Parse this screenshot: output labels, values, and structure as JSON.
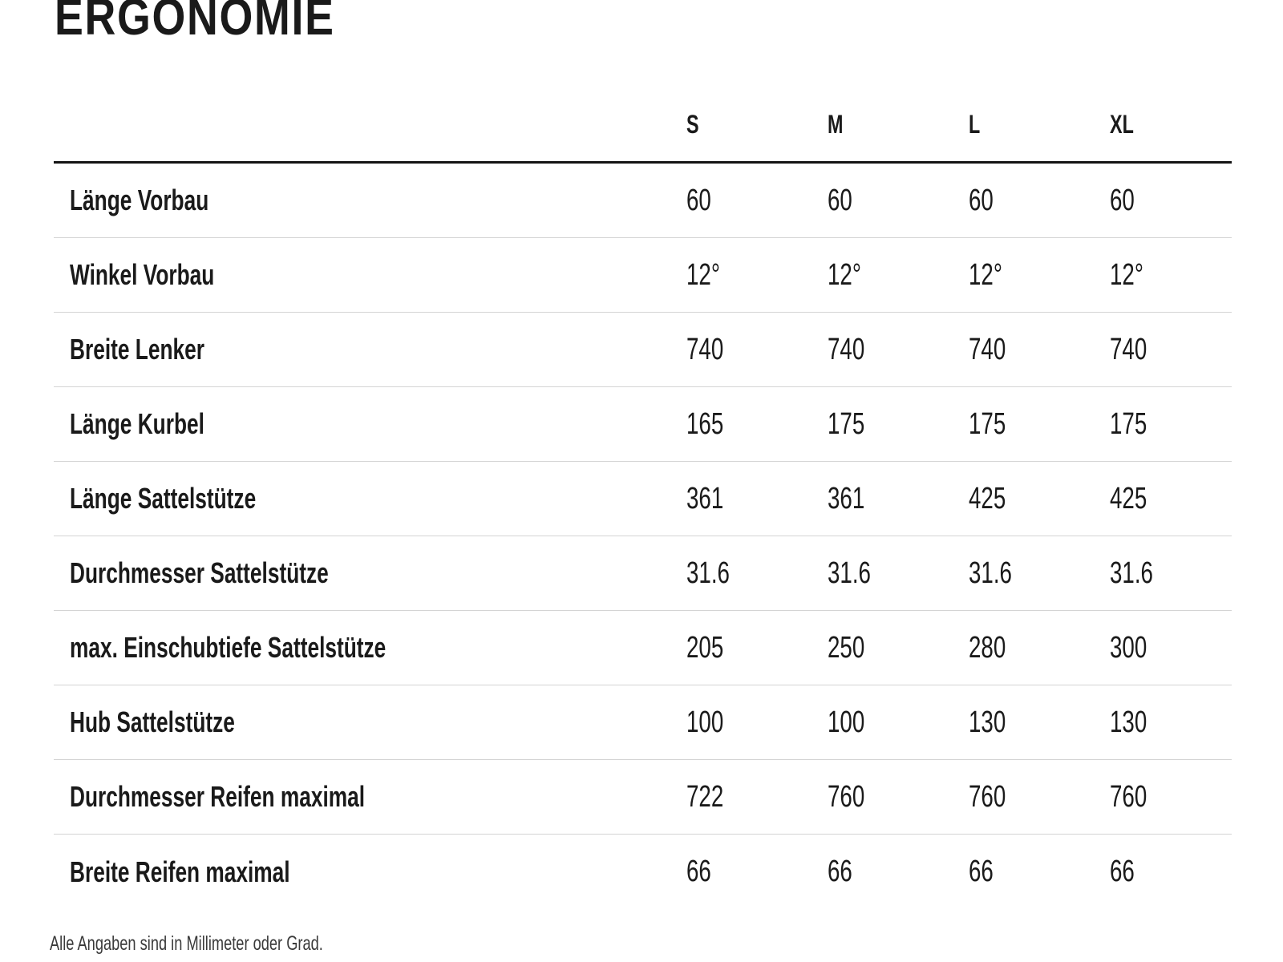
{
  "title": "ERGONOMIE",
  "table": {
    "size_headers": [
      "S",
      "M",
      "L",
      "XL"
    ],
    "rows": [
      {
        "label": "Länge Vorbau",
        "values": [
          "60",
          "60",
          "60",
          "60"
        ]
      },
      {
        "label": "Winkel Vorbau",
        "values": [
          "12°",
          "12°",
          "12°",
          "12°"
        ]
      },
      {
        "label": "Breite Lenker",
        "values": [
          "740",
          "740",
          "740",
          "740"
        ]
      },
      {
        "label": "Länge Kurbel",
        "values": [
          "165",
          "175",
          "175",
          "175"
        ]
      },
      {
        "label": "Länge Sattelstütze",
        "values": [
          "361",
          "361",
          "425",
          "425"
        ]
      },
      {
        "label": "Durchmesser Sattelstütze",
        "values": [
          "31.6",
          "31.6",
          "31.6",
          "31.6"
        ]
      },
      {
        "label": "max. Einschubtiefe Sattelstütze",
        "values": [
          "205",
          "250",
          "280",
          "300"
        ]
      },
      {
        "label": "Hub Sattelstütze",
        "values": [
          "100",
          "100",
          "130",
          "130"
        ]
      },
      {
        "label": "Durchmesser Reifen maximal",
        "values": [
          "722",
          "760",
          "760",
          "760"
        ]
      },
      {
        "label": "Breite Reifen maximal",
        "values": [
          "66",
          "66",
          "66",
          "66"
        ]
      }
    ]
  },
  "footnote": "Alle Angaben sind in Millimeter oder Grad.",
  "colors": {
    "text": "#1a1a1a",
    "footnote_text": "#3a3a3a",
    "divider": "#d4d4d4",
    "header_rule": "#141414",
    "background": "#ffffff"
  }
}
